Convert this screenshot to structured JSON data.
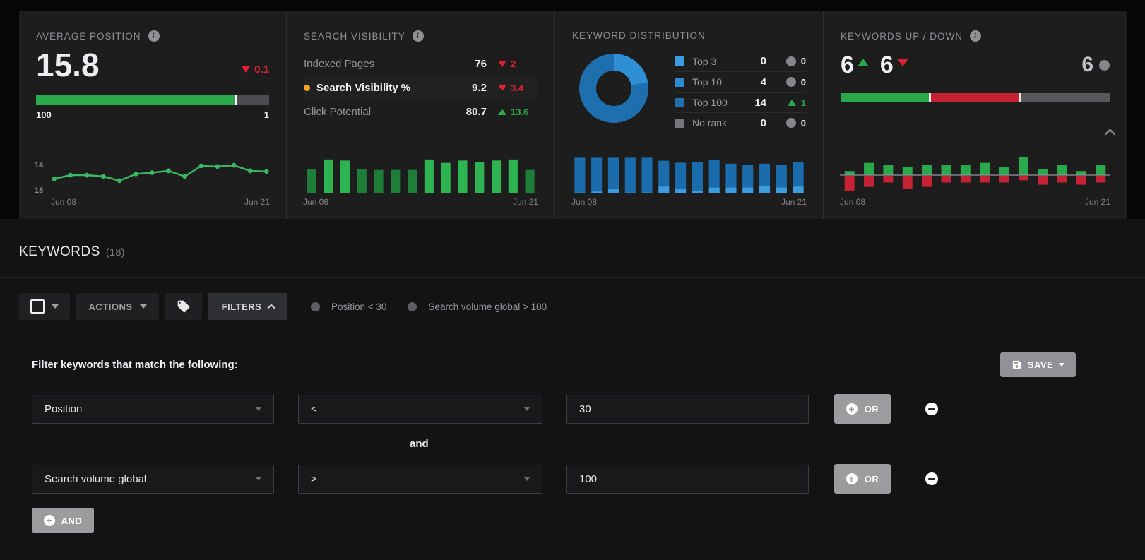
{
  "metrics": {
    "average_position": {
      "title": "AVERAGE POSITION",
      "value": "15.8",
      "delta": "0.1",
      "direction": "down",
      "scale_left": "100",
      "scale_right": "1",
      "bar_fill_pct": 85,
      "bar_color": "#2aa84c"
    },
    "search_visibility": {
      "title": "SEARCH VISIBILITY",
      "rows": [
        {
          "label": "Indexed Pages",
          "value": "76",
          "delta": "2",
          "direction": "down",
          "highlighted": false
        },
        {
          "label": "Search Visibility %",
          "value": "9.2",
          "delta": "3.4",
          "direction": "down",
          "highlighted": true
        },
        {
          "label": "Click Potential",
          "value": "80.7",
          "delta": "13.6",
          "direction": "up",
          "highlighted": false
        }
      ]
    },
    "keyword_distribution": {
      "title": "KEYWORD DISTRIBUTION",
      "legend": [
        {
          "label": "Top 3",
          "count": "0",
          "delta": "0",
          "direction": "none",
          "color": "#3b9de0"
        },
        {
          "label": "Top 10",
          "count": "4",
          "delta": "0",
          "direction": "none",
          "color": "#2e8bd0"
        },
        {
          "label": "Top 100",
          "count": "14",
          "delta": "1",
          "direction": "up",
          "color": "#1d6fae"
        },
        {
          "label": "No rank",
          "count": "0",
          "delta": "0",
          "direction": "none",
          "color": "#757578"
        }
      ],
      "donut_segments": [
        {
          "label": "Top 10",
          "value": 4,
          "color": "#2f8fd5"
        },
        {
          "label": "Top 100",
          "value": 14,
          "color": "#1d6fae"
        }
      ]
    },
    "keywords_up_down": {
      "title": "KEYWORDS UP / DOWN",
      "up": "6",
      "down": "6",
      "unchanged": "6",
      "bar_colors": {
        "up": "#2aa84c",
        "down": "#c52233",
        "unchanged": "#58585a"
      }
    }
  },
  "chart_data": [
    {
      "type": "line",
      "name": "average-position-trend",
      "x_start": "Jun 08",
      "x_end": "Jun 21",
      "y_top_label": "14",
      "y_bottom_label": "18",
      "ylim": [
        14,
        18
      ],
      "y_inverted": true,
      "color": "#3bb863",
      "values": [
        16.7,
        16.1,
        16.1,
        16.3,
        17.0,
        15.9,
        15.7,
        15.4,
        16.3,
        14.6,
        14.7,
        14.5,
        15.4,
        15.5
      ]
    },
    {
      "type": "bar",
      "name": "search-visibility-trend",
      "x_start": "Jun 08",
      "x_end": "Jun 21",
      "ylim": [
        0,
        13.5
      ],
      "color_high": "#2eb351",
      "color_low": "#1e7d38",
      "threshold": 10,
      "values": [
        9.4,
        13,
        12.6,
        9.4,
        9,
        9,
        9,
        13,
        11.7,
        12.6,
        12.1,
        12.6,
        13,
        9
      ]
    },
    {
      "type": "stacked-bar",
      "name": "keyword-distribution-trend",
      "x_start": "Jun 08",
      "x_end": "Jun 21",
      "ylim": [
        0,
        18.5
      ],
      "series": [
        {
          "name": "Top 10",
          "color": "#3b9de0",
          "values": [
            0.5,
            1,
            2.5,
            0.5,
            0.5,
            3.5,
            2.5,
            1.5,
            3,
            3,
            3,
            4,
            3,
            3.5
          ]
        },
        {
          "name": "Top 100",
          "color": "#1b6cad",
          "values": [
            17.5,
            17,
            15.5,
            17.5,
            17.5,
            13,
            13,
            14.5,
            14,
            12,
            11.5,
            11,
            11.5,
            12.5
          ]
        }
      ]
    },
    {
      "type": "diverging-bar",
      "name": "keywords-up-down-trend",
      "x_start": "Jun 08",
      "x_end": "Jun 21",
      "up": {
        "color": "#2aa84c",
        "values": [
          2,
          6,
          5,
          4,
          5,
          5,
          5,
          6,
          4,
          9,
          3,
          5,
          2,
          5
        ]
      },
      "down": {
        "color": "#c52233",
        "values": [
          7,
          5,
          3,
          6,
          5,
          3,
          3,
          3,
          3,
          2,
          4,
          3,
          4,
          3
        ]
      }
    }
  ],
  "keywords_section": {
    "title": "KEYWORDS",
    "count": "(18)"
  },
  "toolbar": {
    "actions_label": "ACTIONS",
    "filters_label": "FILTERS",
    "chips": [
      {
        "label": "Position < 30"
      },
      {
        "label": "Search volume global > 100"
      }
    ]
  },
  "filter_panel": {
    "heading": "Filter keywords that match the following:",
    "save_label": "SAVE",
    "connector": "and",
    "or_label": "OR",
    "and_label": "AND",
    "rows": [
      {
        "field": "Position",
        "operator": "<",
        "value": "30"
      },
      {
        "field": "Search volume global",
        "operator": ">",
        "value": "100"
      }
    ]
  }
}
